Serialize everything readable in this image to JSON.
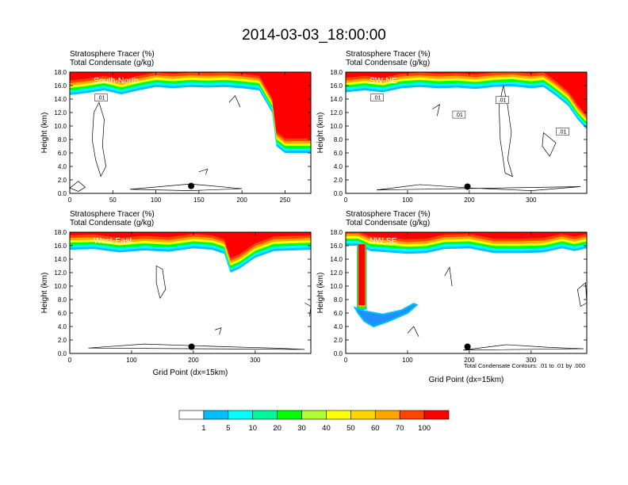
{
  "figure": {
    "title": "2014-03-03_18:00:00",
    "footnote": "Total Condensate Contours: .01 to .01 by .000"
  },
  "colorbar": {
    "levels": [
      "1",
      "5",
      "10",
      "20",
      "30",
      "40",
      "50",
      "60",
      "70",
      "100"
    ],
    "colors": [
      "#ffffff",
      "#1e90ff",
      "#00bfff",
      "#00ffff",
      "#00fa9a",
      "#00ff00",
      "#adff2f",
      "#ffff00",
      "#ffd700",
      "#ffa500",
      "#ff4500",
      "#ff0000"
    ]
  },
  "chart_data": [
    {
      "type": "heatmap",
      "panel": "South-North",
      "title_lines": [
        "Stratosphere Tracer   (%)",
        "Total Condensate   (g/kg)"
      ],
      "ylabel": "Height (km)",
      "xlabel": "",
      "x_ticks": [
        "0",
        "50",
        "100",
        "150",
        "200",
        "250"
      ],
      "x_range": [
        0,
        280
      ],
      "y_ticks": [
        "0.0",
        "2.0",
        "4.0",
        "6.0",
        "8.0",
        "10.0",
        "12.0",
        "14.0",
        "16.0",
        "18.0"
      ],
      "y_range": [
        0,
        18
      ],
      "contour_labels": [
        ".01"
      ],
      "tracer_base_km": [
        [
          0,
          14.6
        ],
        [
          20,
          14.9
        ],
        [
          40,
          15.3
        ],
        [
          60,
          14.7
        ],
        [
          80,
          15.3
        ],
        [
          100,
          15.8
        ],
        [
          120,
          15.6
        ],
        [
          140,
          15.8
        ],
        [
          160,
          15.7
        ],
        [
          180,
          15.8
        ],
        [
          200,
          15.6
        ],
        [
          220,
          15.3
        ],
        [
          235,
          12.0
        ],
        [
          240,
          7.0
        ],
        [
          250,
          6.0
        ],
        [
          265,
          6.0
        ],
        [
          280,
          6.0
        ]
      ],
      "marker": {
        "x": 141,
        "y": 1.1
      }
    },
    {
      "type": "heatmap",
      "panel": "SW-NE",
      "title_lines": [
        "Stratosphere Tracer   (%)",
        "Total Condensate   (g/kg)"
      ],
      "ylabel": "Height (km)",
      "xlabel": "",
      "x_ticks": [
        "0",
        "100",
        "200",
        "300"
      ],
      "x_range": [
        0,
        390
      ],
      "y_ticks": [
        "0.0",
        "2.0",
        "4.0",
        "6.0",
        "8.0",
        "10.0",
        "12.0",
        "14.0",
        "16.0",
        "18.0"
      ],
      "y_range": [
        0,
        18
      ],
      "contour_labels": [
        ".01",
        ".01",
        ".01",
        ".01"
      ],
      "tracer_base_km": [
        [
          0,
          15.0
        ],
        [
          30,
          15.3
        ],
        [
          60,
          15.0
        ],
        [
          90,
          15.6
        ],
        [
          120,
          15.8
        ],
        [
          150,
          15.6
        ],
        [
          180,
          15.7
        ],
        [
          210,
          15.5
        ],
        [
          240,
          15.8
        ],
        [
          270,
          15.9
        ],
        [
          300,
          15.6
        ],
        [
          320,
          15.8
        ],
        [
          340,
          14.5
        ],
        [
          360,
          13.0
        ],
        [
          375,
          11.0
        ],
        [
          390,
          9.5
        ]
      ],
      "marker": {
        "x": 197,
        "y": 1.0
      }
    },
    {
      "type": "heatmap",
      "panel": "West-East",
      "title_lines": [
        "Stratosphere Tracer   (%)",
        "Total Condensate   (g/kg)"
      ],
      "ylabel": "Height (km)",
      "xlabel": "Grid Point (dx=15km)",
      "x_ticks": [
        "0",
        "100",
        "200",
        "300"
      ],
      "x_range": [
        0,
        390
      ],
      "y_ticks": [
        "0.0",
        "2.0",
        "4.0",
        "6.0",
        "8.0",
        "10.0",
        "12.0",
        "14.0",
        "16.0",
        "18.0"
      ],
      "y_range": [
        0,
        18
      ],
      "contour_labels": [],
      "tracer_base_km": [
        [
          0,
          15.4
        ],
        [
          40,
          15.5
        ],
        [
          80,
          15.0
        ],
        [
          120,
          15.3
        ],
        [
          160,
          15.1
        ],
        [
          200,
          15.6
        ],
        [
          230,
          15.4
        ],
        [
          250,
          14.8
        ],
        [
          260,
          12.0
        ],
        [
          275,
          12.6
        ],
        [
          300,
          14.2
        ],
        [
          330,
          15.2
        ],
        [
          360,
          15.3
        ],
        [
          390,
          15.4
        ]
      ],
      "marker": {
        "x": 197,
        "y": 1.0
      }
    },
    {
      "type": "heatmap",
      "panel": "NW-SE",
      "title_lines": [
        "Stratosphere Tracer   (%)",
        "Total Condensate   (g/kg)"
      ],
      "ylabel": "Height (km)",
      "xlabel": "Grid Point (dx=15km)",
      "x_ticks": [
        "0",
        "100",
        "200",
        "300"
      ],
      "x_range": [
        0,
        390
      ],
      "y_ticks": [
        "0.0",
        "2.0",
        "4.0",
        "6.0",
        "8.0",
        "10.0",
        "12.0",
        "14.0",
        "16.0",
        "18.0"
      ],
      "y_range": [
        0,
        18
      ],
      "contour_labels": [],
      "tracer_base_km": [
        [
          0,
          16.0
        ],
        [
          20,
          16.0
        ],
        [
          40,
          15.2
        ],
        [
          70,
          15.0
        ],
        [
          100,
          14.8
        ],
        [
          130,
          14.9
        ],
        [
          160,
          15.5
        ],
        [
          200,
          15.6
        ],
        [
          240,
          14.9
        ],
        [
          280,
          14.9
        ],
        [
          320,
          15.0
        ],
        [
          350,
          15.6
        ],
        [
          370,
          15.2
        ],
        [
          390,
          15.6
        ]
      ],
      "marker": {
        "x": 197,
        "y": 1.0
      }
    }
  ]
}
